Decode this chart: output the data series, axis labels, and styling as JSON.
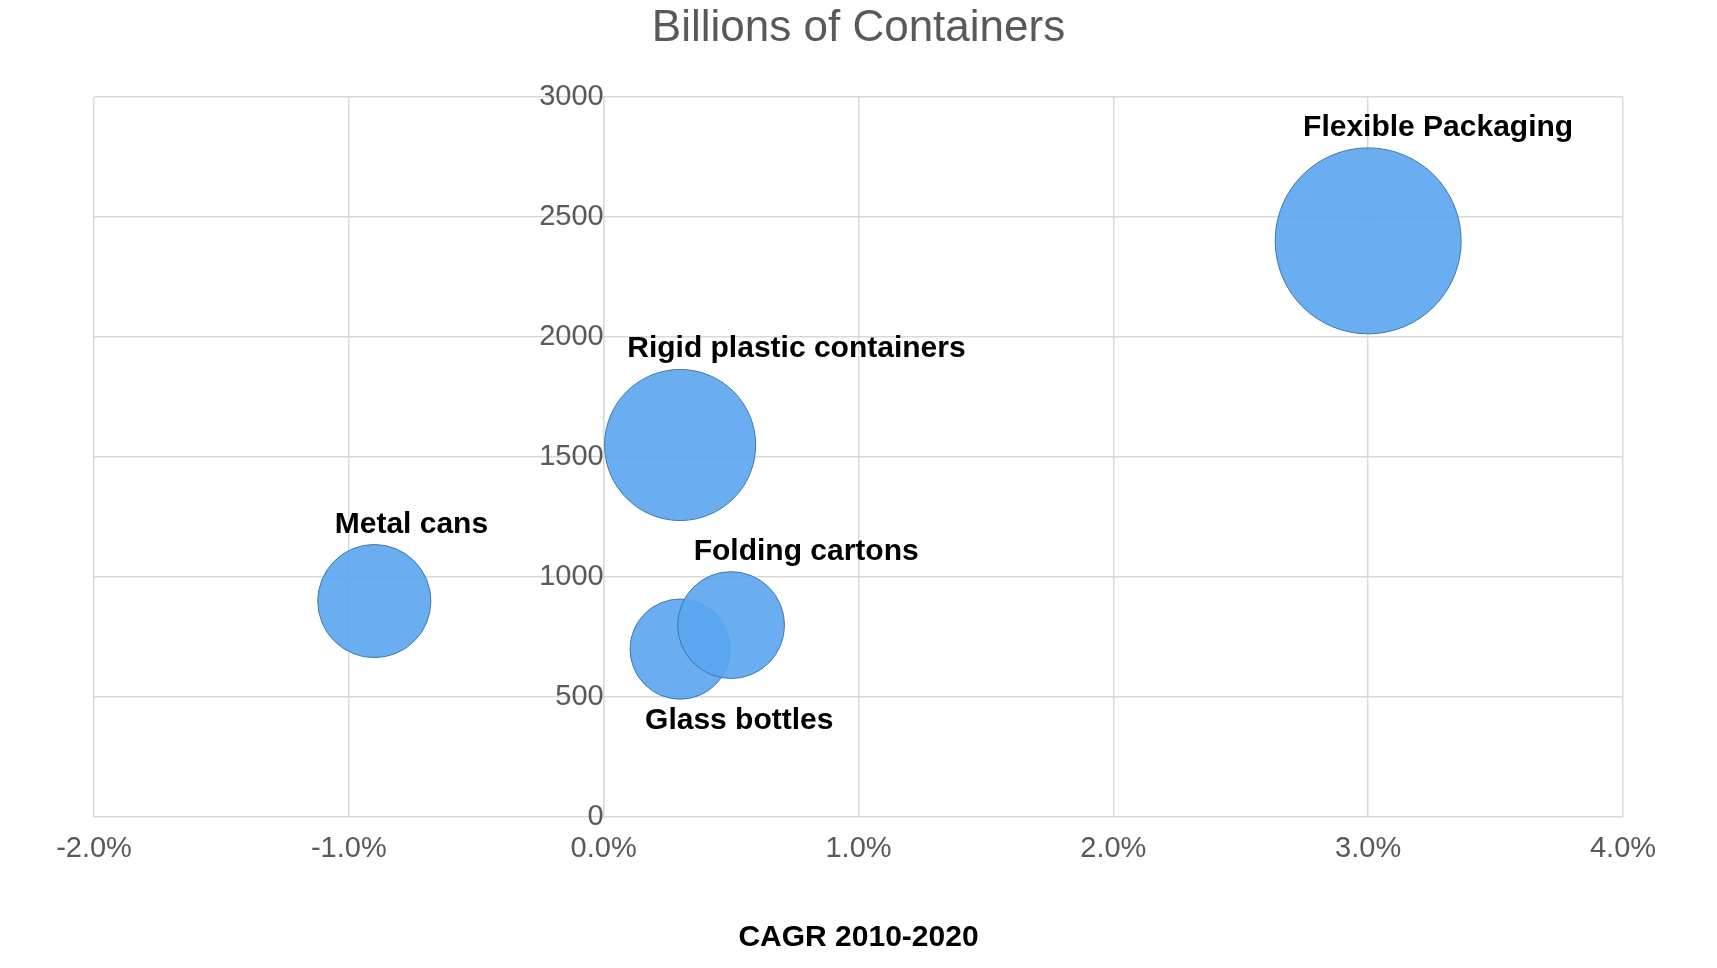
{
  "chart_data": {
    "type": "bubble",
    "title": "Billions of Containers",
    "xlabel": "CAGR 2010-2020",
    "xlim": [
      -2,
      4
    ],
    "xticks": [
      {
        "value": -2,
        "label": "-2.0%"
      },
      {
        "value": -1,
        "label": "-1.0%"
      },
      {
        "value": 0,
        "label": "0.0%"
      },
      {
        "value": 1,
        "label": "1.0%"
      },
      {
        "value": 2,
        "label": "2.0%"
      },
      {
        "value": 3,
        "label": "3.0%"
      },
      {
        "value": 4,
        "label": "4.0%"
      }
    ],
    "ylim": [
      0,
      3000
    ],
    "yticks": [
      0,
      500,
      1000,
      1500,
      2000,
      2500,
      3000
    ],
    "grid": true,
    "legend": false,
    "marker": "circle",
    "series": [
      {
        "name": "Flexible Packaging",
        "color": "#5aa5f0",
        "x": [
          3.0
        ],
        "values": [
          2400
        ],
        "sizes": [
          1
        ]
      },
      {
        "name": "Rigid plastic containers",
        "color": "#5aa5f0",
        "x": [
          0.3
        ],
        "values": [
          1550
        ],
        "sizes": [
          0.66
        ]
      },
      {
        "name": "Metal cans",
        "color": "#5aa5f0",
        "x": [
          -0.9
        ],
        "values": [
          900
        ],
        "sizes": [
          0.37
        ]
      },
      {
        "name": "Folding cartons",
        "color": "#5aa5f0",
        "x": [
          0.5
        ],
        "values": [
          800
        ],
        "sizes": [
          0.33
        ]
      },
      {
        "name": "Glass bottles",
        "color": "#5aa5f0",
        "x": [
          0.3
        ],
        "values": [
          700
        ],
        "sizes": [
          0.29
        ]
      }
    ]
  }
}
